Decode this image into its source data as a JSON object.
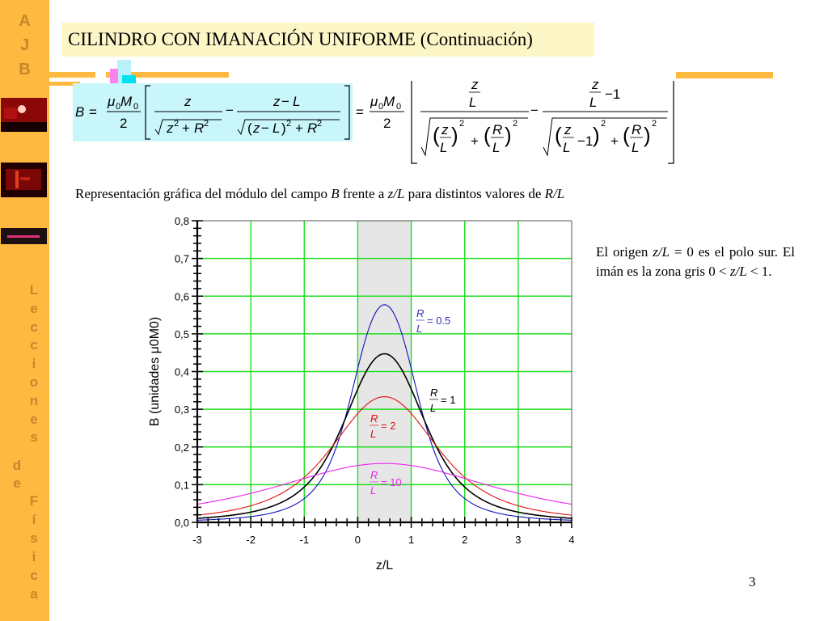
{
  "sidebar": {
    "logo_letters": [
      "A",
      "J",
      "B"
    ],
    "vertical_text": {
      "word1": [
        "L",
        "e",
        "c",
        "c",
        "i",
        "o",
        "n",
        "e",
        "s"
      ],
      "word2": [
        "d",
        "e"
      ],
      "word3": [
        "F",
        "í",
        "s",
        "i",
        "c",
        "a"
      ]
    },
    "thumbnails": [
      "lab-photo-1",
      "lab-photo-2",
      "spectrum-photo"
    ]
  },
  "header": {
    "title": "CILINDRO CON IMANACIÓN UNIFORME (Continuación)"
  },
  "formula": {
    "lhs": "B =",
    "prefactor_num": "μ0M0",
    "prefactor_den": "2",
    "term1_num": "z",
    "term1_den": "√(z² + R²)",
    "term2_num": "z − L",
    "term2_den": "√((z − L)² + R²)",
    "normalized": "= (μ0M0/2) [ (z/L) / √((z/L)² + (R/L)²) − (z/L − 1) / √((z/L − 1)² + (R/L)²) ]"
  },
  "caption": {
    "part1": "Representación gráfica del módulo del campo ",
    "B": "B",
    "part2": " frente a ",
    "zL": "z/L",
    "part3": " para distintos valores de ",
    "RL": "R/L"
  },
  "note": {
    "text1": "El origen ",
    "zL1": "z/L",
    "text2": " = 0 es el polo sur. El imán es la zona gris 0 < ",
    "zL2": "z/L",
    "text3": " < 1."
  },
  "slide_number": "3",
  "chart_data": {
    "type": "line",
    "title": "",
    "xlabel": "z/L",
    "ylabel": "B (unidades μ0M0)",
    "xlim": [
      -3,
      4
    ],
    "ylim": [
      0,
      0.8
    ],
    "x_ticks": [
      "-3",
      "-2",
      "-1",
      "0",
      "1",
      "2",
      "3",
      "4"
    ],
    "y_ticks": [
      "0,0",
      "0,1",
      "0,2",
      "0,3",
      "0,4",
      "0,5",
      "0,6",
      "0,7",
      "0,8"
    ],
    "grid": true,
    "grid_color": "#22dd22",
    "shaded_region": {
      "x_from": 0,
      "x_to": 1,
      "color": "#e6e6e6",
      "meaning": "imán"
    },
    "x": [
      -3,
      -2.5,
      -2,
      -1.5,
      -1,
      -0.5,
      0,
      0.5,
      1,
      1.5,
      2,
      2.5,
      3,
      3.5,
      4
    ],
    "series": [
      {
        "name": "R/L = 0.5",
        "label_value": "0.5",
        "k": 0.5,
        "color": "#1010c0",
        "values": [
          0.006,
          0.009,
          0.015,
          0.026,
          0.057,
          0.158,
          0.408,
          0.577,
          0.408,
          0.158,
          0.057,
          0.026,
          0.015,
          0.009,
          0.006
        ]
      },
      {
        "name": "R/L = 1",
        "label_value": "1",
        "k": 1,
        "color": "#000000",
        "values": [
          0.012,
          0.017,
          0.027,
          0.049,
          0.094,
          0.2,
          0.354,
          0.447,
          0.354,
          0.2,
          0.094,
          0.049,
          0.027,
          0.017,
          0.012
        ]
      },
      {
        "name": "R/L = 2",
        "label_value": "2",
        "k": 2,
        "color": "#dd1111",
        "values": [
          0.02,
          0.029,
          0.044,
          0.071,
          0.118,
          0.201,
          0.289,
          0.333,
          0.289,
          0.201,
          0.118,
          0.071,
          0.044,
          0.029,
          0.02
        ]
      },
      {
        "name": "R/L = 10",
        "label_value": "10",
        "k": 10,
        "color": "#ee22ee",
        "values": [
          0.048,
          0.06,
          0.075,
          0.093,
          0.113,
          0.134,
          0.15,
          0.156,
          0.15,
          0.134,
          0.113,
          0.093,
          0.075,
          0.06,
          0.048
        ]
      }
    ],
    "annotations": [
      {
        "text": "R/L = 0.5",
        "color": "#3333bb"
      },
      {
        "text": "R/L = 1",
        "color": "#000000"
      },
      {
        "text": "R/L = 2",
        "color": "#dd1111"
      },
      {
        "text": "R/L = 10",
        "color": "#ee22ee"
      }
    ]
  }
}
